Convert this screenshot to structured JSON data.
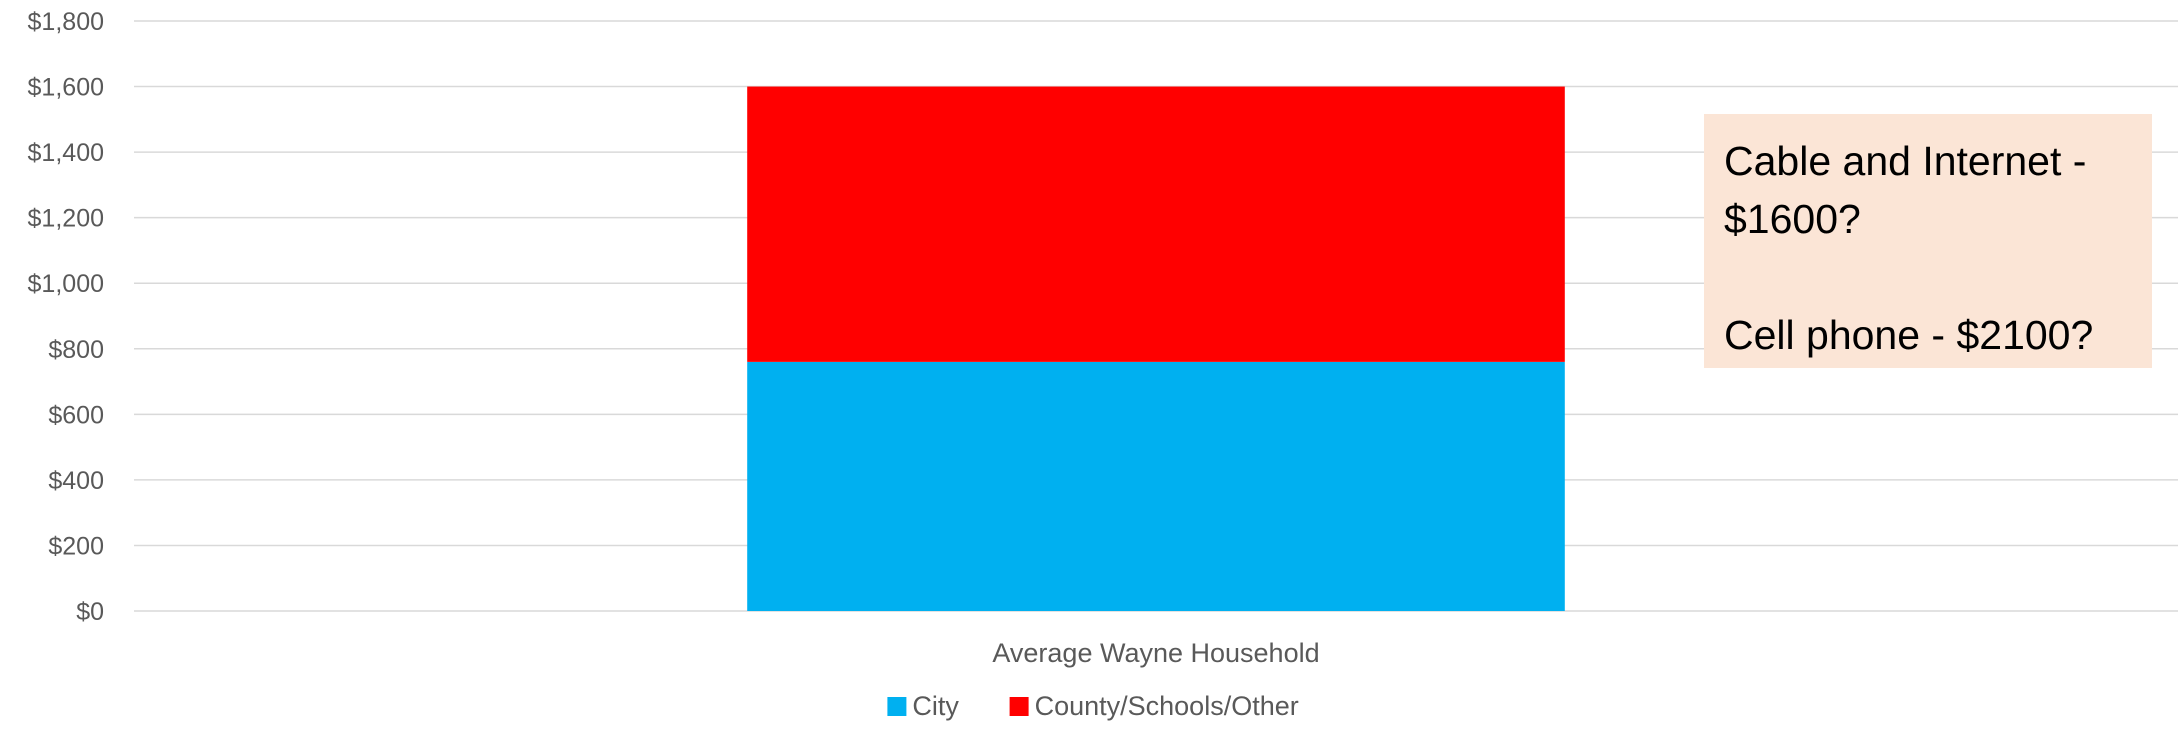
{
  "colors": {
    "city": "#00b0f0",
    "county": "#ff0000",
    "callout_bg": "#fbe5d6",
    "grid": "#d9d9d9",
    "text": "#595959"
  },
  "callout": {
    "line1": "Cable and Internet -",
    "line2": "$1600?",
    "line3": "Cell phone - $2100?"
  },
  "chart_data": {
    "type": "bar",
    "stacked": true,
    "categories": [
      "Average Wayne Household"
    ],
    "series": [
      {
        "name": "City",
        "values": [
          760
        ],
        "color": "#00b0f0"
      },
      {
        "name": "County/Schools/Other",
        "values": [
          840
        ],
        "color": "#ff0000"
      }
    ],
    "ylim": [
      0,
      1800
    ],
    "yticks": [
      0,
      200,
      400,
      600,
      800,
      1000,
      1200,
      1400,
      1600,
      1800
    ],
    "ytick_labels": [
      "$0",
      "$200",
      "$400",
      "$600",
      "$800",
      "$1,000",
      "$1,200",
      "$1,400",
      "$1,600",
      "$1,800"
    ],
    "grid": true,
    "legend": "bottom"
  }
}
